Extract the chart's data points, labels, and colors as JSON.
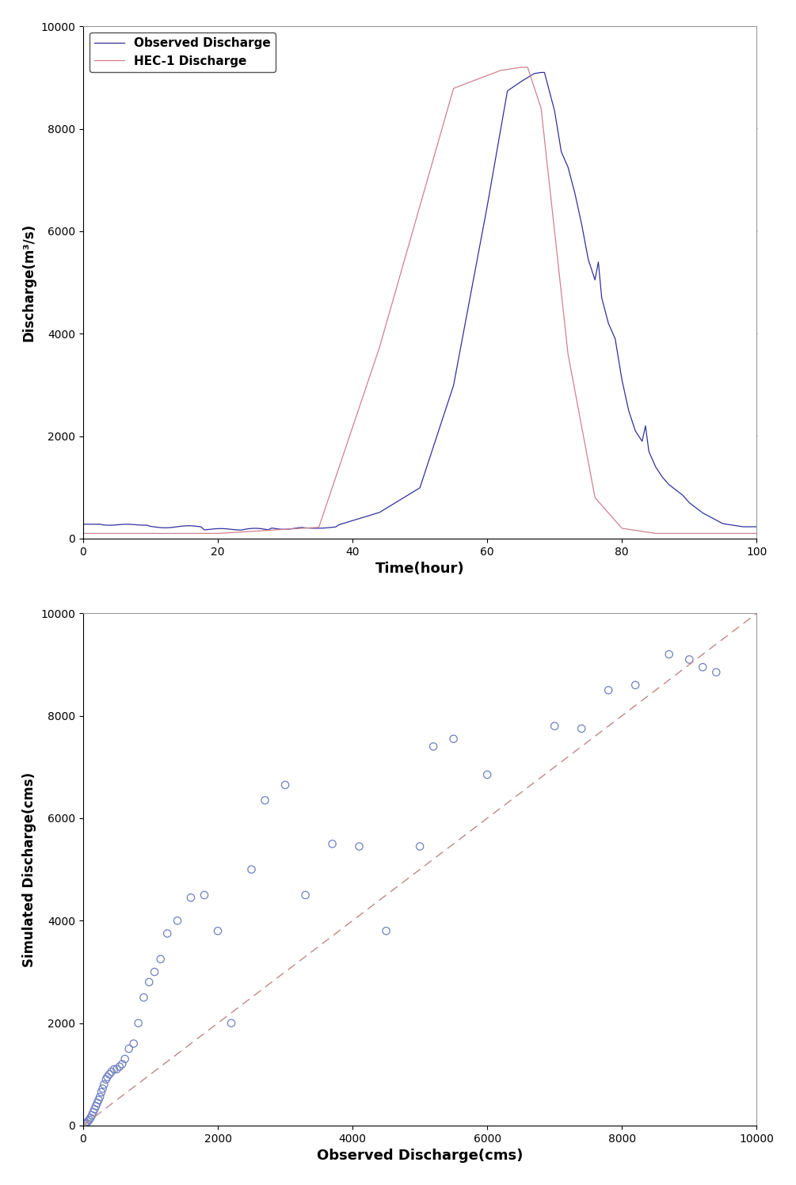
{
  "top_plot": {
    "xlabel": "Time(hour)",
    "ylabel": "Discharge(m³/s)",
    "xlim": [
      0,
      100
    ],
    "ylim": [
      0,
      10000
    ],
    "xticks": [
      0,
      20,
      40,
      60,
      80,
      100
    ],
    "yticks": [
      0,
      2000,
      4000,
      6000,
      8000,
      10000
    ],
    "observed_color": "#3030A0",
    "hec1_color": "#D08090",
    "legend_labels": [
      "Observed Discharge",
      "HEC-1 Discharge"
    ]
  },
  "bottom_plot": {
    "xlabel": "Observed Discharge(cms)",
    "ylabel": "Simulated Discharge(cms)",
    "xlim": [
      0,
      10000
    ],
    "ylim": [
      0,
      10000
    ],
    "xticks": [
      0,
      2000,
      4000,
      6000,
      8000,
      10000
    ],
    "yticks": [
      0,
      2000,
      4000,
      6000,
      8000,
      10000
    ],
    "scatter_color": "#7080C0",
    "line_color": "#C08888",
    "scatter_x": [
      30,
      50,
      70,
      90,
      110,
      130,
      150,
      170,
      190,
      210,
      230,
      250,
      270,
      290,
      310,
      340,
      360,
      390,
      420,
      460,
      500,
      540,
      580,
      620,
      680,
      750,
      820,
      900,
      980,
      1060,
      1150,
      1250,
      1400,
      1600,
      1800,
      2000,
      2200,
      2500,
      2700,
      3000,
      3300,
      3700,
      4100,
      4500,
      5000,
      5200,
      5500,
      6000,
      7000,
      7400,
      7800,
      8200,
      8700,
      9000,
      9200,
      9400
    ],
    "scatter_y": [
      30,
      50,
      80,
      110,
      150,
      200,
      260,
      320,
      380,
      440,
      500,
      560,
      650,
      720,
      800,
      900,
      950,
      1000,
      1050,
      1100,
      1100,
      1150,
      1200,
      1300,
      1500,
      1600,
      2000,
      2500,
      2800,
      3000,
      3250,
      3750,
      4000,
      4450,
      4500,
      3800,
      2000,
      5000,
      6350,
      6650,
      4500,
      5500,
      5450,
      3800,
      5450,
      7400,
      7550,
      6850,
      7800,
      7750,
      8500,
      8600,
      9200,
      9100,
      8950,
      8850
    ]
  }
}
